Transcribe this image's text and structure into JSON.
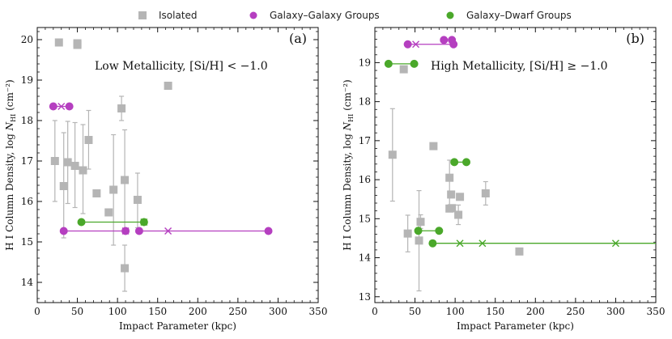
{
  "colors": {
    "isolated": "#b5b5b5",
    "galaxy_galaxy": "#b53fc0",
    "galaxy_dwarf": "#4aa82a",
    "axis": "#111111"
  },
  "legend": [
    {
      "key": "isolated",
      "label": "Isolated",
      "marker": "square"
    },
    {
      "key": "galaxy_galaxy",
      "label": "Galaxy–Galaxy Groups",
      "marker": "circle"
    },
    {
      "key": "galaxy_dwarf",
      "label": "Galaxy–Dwarf Groups",
      "marker": "circle"
    }
  ],
  "chart_data": [
    {
      "type": "scatter",
      "panel": "(a)",
      "annotation": "Low Metallicity, [Si/H] < −1.0",
      "xlabel": "Impact Parameter (kpc)",
      "ylabel": "H I Column Density, log N_HI (cm⁻²)",
      "xlim": [
        0,
        350
      ],
      "ylim": [
        13.5,
        20.3
      ],
      "xticks": [
        0,
        50,
        100,
        150,
        200,
        250,
        300,
        350
      ],
      "yticks": [
        14,
        15,
        16,
        17,
        18,
        19,
        20
      ],
      "isolated": [
        {
          "x": 27,
          "y": 19.93
        },
        {
          "x": 50,
          "y": 19.87
        },
        {
          "x": 50,
          "y": 19.91
        },
        {
          "x": 22,
          "y": 17.0,
          "lo": 16.0,
          "hi": 18.0
        },
        {
          "x": 33,
          "y": 16.38,
          "lo": 15.1,
          "hi": 17.7
        },
        {
          "x": 38,
          "y": 16.97,
          "lo": 15.95,
          "hi": 17.98
        },
        {
          "x": 47,
          "y": 16.88,
          "lo": 15.85,
          "hi": 17.95
        },
        {
          "x": 57,
          "y": 16.77,
          "lo": 15.7,
          "hi": 17.9
        },
        {
          "x": 64,
          "y": 17.52,
          "lo": 16.8,
          "hi": 18.25
        },
        {
          "x": 74,
          "y": 16.2
        },
        {
          "x": 89,
          "y": 15.73
        },
        {
          "x": 95,
          "y": 16.29,
          "lo": 14.92,
          "hi": 17.65
        },
        {
          "x": 105,
          "y": 18.3,
          "lo": 18.0,
          "hi": 18.6
        },
        {
          "x": 109,
          "y": 16.53,
          "lo": 15.3,
          "hi": 17.77
        },
        {
          "x": 109,
          "y": 14.35,
          "lo": 13.78,
          "hi": 14.92
        },
        {
          "x": 125,
          "y": 16.04,
          "lo": 15.35,
          "hi": 16.7
        },
        {
          "x": 163,
          "y": 18.86
        }
      ],
      "groups": [
        {
          "kind": "galaxy_galaxy",
          "y": 18.35,
          "members": [
            20,
            40
          ],
          "center": 30
        },
        {
          "kind": "galaxy_galaxy",
          "y": 15.27,
          "members": [
            33,
            110
          ],
          "center": 110
        },
        {
          "kind": "galaxy_galaxy",
          "y": 15.27,
          "members": [
            127,
            288
          ],
          "center": 163
        },
        {
          "kind": "galaxy_dwarf",
          "y": 15.49,
          "members": [
            55,
            133
          ],
          "center": 133
        }
      ]
    },
    {
      "type": "scatter",
      "panel": "(b)",
      "annotation": "High Metallicity, [Si/H] ≥ −1.0",
      "xlabel": "Impact Parameter (kpc)",
      "ylabel": "H I Column Density, log N_HI (cm⁻²)",
      "xlim": [
        0,
        350
      ],
      "ylim": [
        12.85,
        19.9
      ],
      "xticks": [
        0,
        50,
        100,
        150,
        200,
        250,
        300,
        350
      ],
      "yticks": [
        13,
        14,
        15,
        16,
        17,
        18,
        19
      ],
      "isolated": [
        {
          "x": 22,
          "y": 16.64,
          "lo": 15.45,
          "hi": 17.82
        },
        {
          "x": 36,
          "y": 18.83
        },
        {
          "x": 41,
          "y": 14.62,
          "lo": 14.15,
          "hi": 15.09
        },
        {
          "x": 55,
          "y": 14.44,
          "lo": 13.15,
          "hi": 15.72
        },
        {
          "x": 57,
          "y": 14.92,
          "lo": 14.75,
          "hi": 15.1
        },
        {
          "x": 73,
          "y": 16.86
        },
        {
          "x": 93,
          "y": 16.05,
          "lo": 15.3,
          "hi": 16.5
        },
        {
          "x": 93,
          "y": 15.26
        },
        {
          "x": 95,
          "y": 15.62
        },
        {
          "x": 96,
          "y": 15.27
        },
        {
          "x": 104,
          "y": 15.1,
          "lo": 14.85,
          "hi": 15.35
        },
        {
          "x": 106,
          "y": 15.56
        },
        {
          "x": 138,
          "y": 15.65,
          "lo": 15.35,
          "hi": 15.95
        },
        {
          "x": 180,
          "y": 14.16
        }
      ],
      "groups": [
        {
          "kind": "galaxy_galaxy",
          "y": 19.47,
          "members": [
            41,
            98
          ],
          "center": 51
        },
        {
          "kind": "galaxy_galaxy",
          "y": 19.58,
          "members": [
            86,
            96
          ],
          "center": null
        },
        {
          "kind": "galaxy_dwarf",
          "y": 18.97,
          "members": [
            17,
            49
          ],
          "center": null
        },
        {
          "kind": "galaxy_dwarf",
          "y": 14.69,
          "members": [
            54,
            80
          ],
          "center": null
        },
        {
          "kind": "galaxy_dwarf",
          "y": 16.45,
          "members": [
            99,
            114
          ],
          "center": null
        },
        {
          "kind": "galaxy_dwarf",
          "y": 14.37,
          "members": [
            72,
            350
          ],
          "center": [
            106,
            134,
            300
          ]
        }
      ]
    }
  ]
}
